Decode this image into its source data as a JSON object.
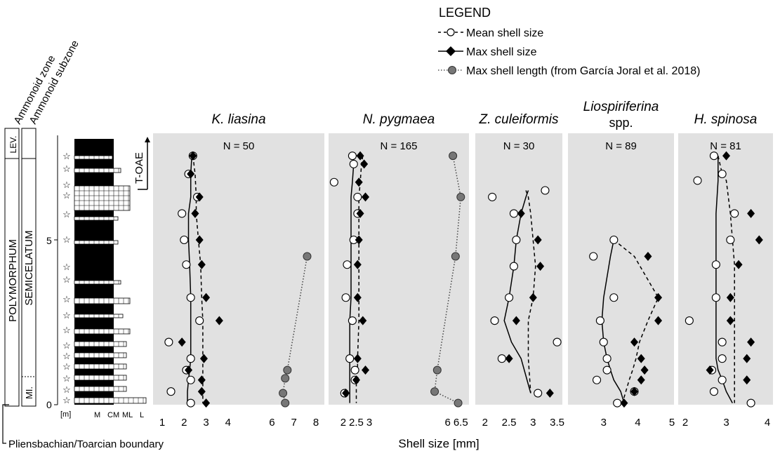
{
  "legend": {
    "title": "LEGEND",
    "mean_label": "Mean shell size",
    "max_label": "Max shell size",
    "length_label": "Max shell length (from García Joral et al. 2018)"
  },
  "strat": {
    "zone_label": "Ammonoid zone",
    "subzone_label": "Ammonoid subzone",
    "zone_polymorphum": "POLYMORPHUM",
    "zone_lev": "LEV.",
    "subzone_semicelatum": "SEMICELATUM",
    "subzone_mi": "MI.",
    "tick_0": "0",
    "tick_5": "5",
    "unit": "[m]",
    "lith_axis": [
      "M",
      "CM",
      "ML",
      "L"
    ],
    "toae_label": "T-OAE",
    "boundary_label": "Pliensbachian/Toarcian boundary"
  },
  "xlabel": "Shell size [mm]",
  "chart_data": [
    {
      "type": "scatter",
      "title": "K. liasina",
      "n_label": "N = 50",
      "axis_range": [
        1,
        8
      ],
      "ticks": [
        "1",
        "2",
        "3",
        "4",
        "6",
        "7",
        "8"
      ],
      "depth_unit": "m",
      "depths": [
        7.55,
        7.0,
        6.3,
        5.8,
        5.0,
        4.25,
        3.25,
        2.55,
        1.9,
        1.4,
        1.05,
        0.75,
        0.4,
        0.05
      ],
      "mean": [
        2.4,
        2.2,
        2.6,
        1.9,
        2.0,
        2.1,
        2.3,
        2.7,
        1.3,
        2.3,
        2.1,
        2.3,
        1.4,
        2.3
      ],
      "max": [
        2.4,
        2.3,
        2.7,
        2.5,
        2.7,
        2.8,
        3.0,
        3.6,
        1.9,
        2.9,
        2.2,
        2.8,
        2.8,
        3.0
      ],
      "mean_trend": [
        2.35,
        2.3,
        2.3,
        2.2,
        2.2,
        2.25,
        2.3,
        2.3,
        2.3,
        2.3,
        2.25,
        2.2,
        2.15,
        2.15
      ],
      "max_trend": [
        2.4,
        2.5,
        2.55,
        2.55,
        2.65,
        2.75,
        2.8,
        2.85,
        2.85,
        2.85,
        2.85,
        2.85,
        2.85,
        2.85
      ],
      "length_depths": [
        4.5,
        1.05,
        0.8,
        0.35,
        0.05
      ],
      "length": [
        7.6,
        6.7,
        6.6,
        6.5,
        6.6
      ]
    },
    {
      "type": "scatter",
      "title": "N. pygmaea",
      "n_label": "N = 165",
      "axis_range": [
        1.6,
        6.6
      ],
      "ticks": [
        "2",
        "2.5",
        "3",
        "6",
        "6.5"
      ],
      "depth_unit": "m",
      "depths": [
        7.55,
        7.3,
        6.75,
        6.3,
        5.8,
        5.0,
        4.25,
        3.25,
        2.55,
        1.4,
        1.05,
        0.75,
        0.35,
        0.05
      ],
      "mean": [
        2.35,
        2.4,
        1.65,
        2.55,
        2.55,
        2.4,
        2.15,
        2.1,
        2.35,
        2.25,
        2.45,
        2.45,
        2.05,
        null
      ],
      "max": [
        2.65,
        2.8,
        2.6,
        2.85,
        2.65,
        2.6,
        2.55,
        2.55,
        2.75,
        2.55,
        2.85,
        2.5,
        2.1,
        null
      ],
      "mean_trend": [
        2.4,
        2.4,
        2.35,
        2.3,
        2.3,
        2.3,
        2.3,
        2.3,
        2.25,
        2.25,
        2.25,
        2.25,
        2.25,
        2.25
      ],
      "max_trend": [
        2.75,
        2.7,
        2.65,
        2.6,
        2.6,
        2.6,
        2.6,
        2.6,
        2.6,
        2.55,
        2.55,
        2.5,
        2.5,
        2.5
      ],
      "length_depths": [
        7.55,
        6.3,
        4.5,
        1.05,
        0.4,
        0.05
      ],
      "length": [
        6.2,
        6.5,
        6.3,
        5.6,
        5.5,
        6.4
      ]
    },
    {
      "type": "scatter",
      "title": "Z. culeiformis",
      "n_label": "N = 30",
      "axis_range": [
        1.9,
        3.55
      ],
      "ticks": [
        "2",
        "2.5",
        "3",
        "3.5"
      ],
      "depth_unit": "m",
      "depths": [
        6.5,
        6.3,
        5.8,
        5.0,
        4.2,
        3.25,
        2.55,
        1.9,
        1.4,
        0.35
      ],
      "mean": [
        3.25,
        2.15,
        2.6,
        2.65,
        2.6,
        2.5,
        2.2,
        3.5,
        2.35,
        3.1
      ],
      "max": [
        null,
        null,
        2.75,
        3.1,
        3.15,
        3.0,
        2.65,
        null,
        2.5,
        3.35
      ],
      "mean_trend": [
        2.9,
        2.85,
        2.75,
        2.65,
        2.6,
        2.5,
        2.4,
        2.55,
        2.75,
        2.95
      ],
      "max_trend": [
        2.85,
        2.9,
        2.95,
        3.0,
        3.05,
        3.0,
        2.9,
        2.9,
        2.9,
        2.95
      ],
      "length_depths": [],
      "length": []
    },
    {
      "type": "scatter",
      "title": "Liospiriferina",
      "title_suffix": "spp.",
      "n_label": "N = 89",
      "axis_range": [
        2.1,
        5.0
      ],
      "ticks": [
        "3",
        "4",
        "5"
      ],
      "depth_unit": "m",
      "depths": [
        5.0,
        4.5,
        3.25,
        2.55,
        1.9,
        1.4,
        1.05,
        0.75,
        0.4,
        0.05
      ],
      "mean": [
        3.3,
        2.7,
        3.3,
        2.9,
        3.0,
        3.1,
        3.1,
        2.8,
        3.9,
        3.4
      ],
      "max": [
        null,
        4.3,
        4.6,
        4.6,
        3.9,
        4.1,
        4.2,
        4.1,
        3.9,
        3.6
      ],
      "mean_trend": [
        3.3,
        3.2,
        3.0,
        2.95,
        3.0,
        3.1,
        3.2,
        3.3,
        3.5,
        3.6
      ],
      "max_trend": [
        3.3,
        3.9,
        4.6,
        4.3,
        4.05,
        3.95,
        3.85,
        3.75,
        3.65,
        3.55
      ],
      "length_depths": [],
      "length": []
    },
    {
      "type": "scatter",
      "title": "H. spinosa",
      "n_label": "N = 81",
      "axis_range": [
        2.0,
        4.0
      ],
      "ticks": [
        "2",
        "3",
        "4"
      ],
      "depth_unit": "m",
      "depths": [
        7.55,
        7.0,
        6.8,
        5.8,
        5.0,
        4.25,
        3.25,
        2.55,
        1.9,
        1.4,
        1.05,
        0.75,
        0.4,
        0.05
      ],
      "mean": [
        2.7,
        2.9,
        2.3,
        3.2,
        3.1,
        2.75,
        2.75,
        2.1,
        2.9,
        2.9,
        2.65,
        2.9,
        2.7,
        3.6
      ],
      "max": [
        3.0,
        null,
        null,
        3.6,
        3.8,
        3.3,
        3.1,
        3.1,
        3.6,
        3.5,
        2.6,
        3.5,
        null,
        null
      ],
      "mean_trend": [
        2.8,
        2.8,
        2.8,
        2.75,
        2.75,
        2.75,
        2.75,
        2.75,
        2.75,
        2.75,
        2.8,
        2.9,
        3.0,
        3.15
      ],
      "max_trend": [
        2.8,
        2.9,
        3.0,
        3.1,
        3.15,
        3.2,
        3.2,
        3.2,
        3.2,
        3.2,
        3.2,
        3.2,
        3.2,
        3.2
      ],
      "length_depths": [],
      "length": []
    }
  ]
}
